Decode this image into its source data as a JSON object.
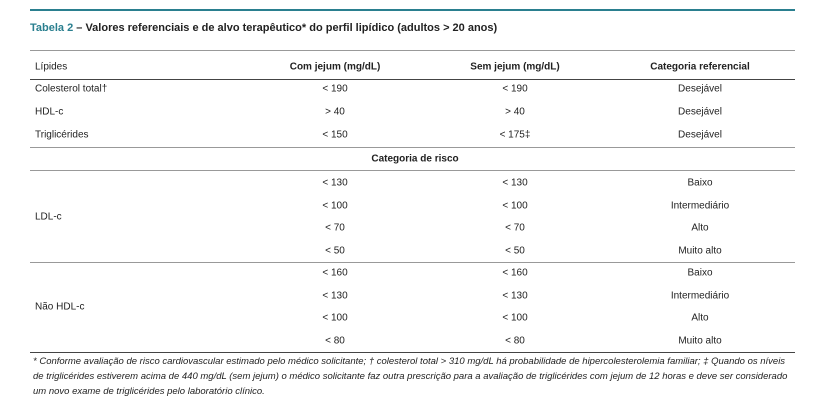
{
  "title": {
    "label": "Tabela 2",
    "text": "– Valores referenciais e de alvo terapêutico* do perfil lipídico (adultos > 20 anos)"
  },
  "table": {
    "header": [
      "Lípides",
      "Com jejum (mg/dL)",
      "Sem jejum (mg/dL)",
      "Categoria referencial"
    ],
    "rows": [
      [
        "Colesterol total†",
        "< 190",
        "< 190",
        "Desejável"
      ],
      [
        "HDL-c",
        "> 40",
        "> 40",
        "Desejável"
      ],
      [
        "Triglicérides",
        "< 150",
        "< 175‡",
        "Desejável"
      ]
    ],
    "subheader": "Categoria de risco",
    "groups": [
      {
        "label": "LDL-c",
        "rows": [
          [
            "< 130",
            "< 130",
            "Baixo"
          ],
          [
            "< 100",
            "< 100",
            "Intermediário"
          ],
          [
            "< 70",
            "< 70",
            "Alto"
          ],
          [
            "< 50",
            "< 50",
            "Muito alto"
          ]
        ]
      },
      {
        "label": "Não HDL-c",
        "rows": [
          [
            "< 160",
            "< 160",
            "Baixo"
          ],
          [
            "< 130",
            "< 130",
            "Intermediário"
          ],
          [
            "< 100",
            "< 100",
            "Alto"
          ],
          [
            "< 80",
            "< 80",
            "Muito alto"
          ]
        ]
      }
    ]
  },
  "footnote": "* Conforme avaliação de risco cardiovascular estimado pelo médico solicitante; † colesterol total > 310 mg/dL há probabilidade de hipercolesterolemia familiar; ‡ Quando os níveis de triglicérides estiverem acima de 440 mg/dL (sem jejum) o médico solicitante faz outra prescrição para a avaliação de triglicérides com jejum de 12 horas e deve ser considerado um novo exame de triglicérides pelo laboratório clínico."
}
